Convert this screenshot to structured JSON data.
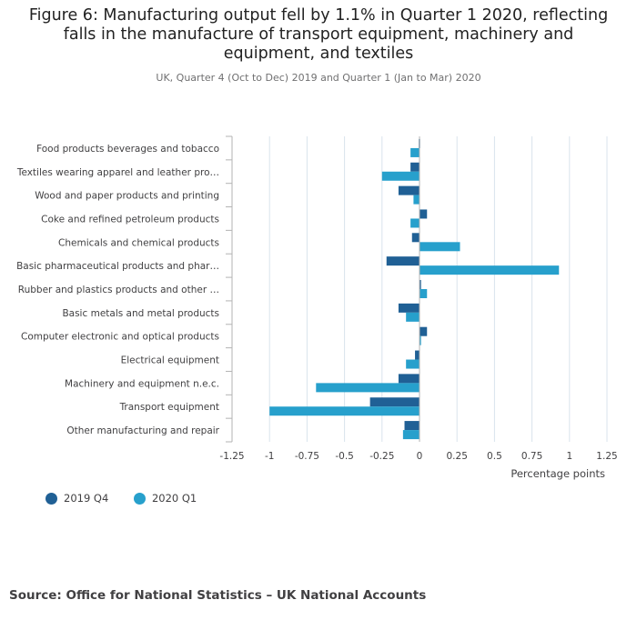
{
  "figure": {
    "title": "Figure 6: Manufacturing output fell by 1.1% in Quarter 1 2020, reflecting falls in the manufacture of transport equipment, machinery and equipment, and textiles",
    "subtitle": "UK, Quarter 4 (Oct to Dec) 2019 and Quarter 1 (Jan to Mar) 2020",
    "source": "Source: Office for National Statistics – UK National Accounts"
  },
  "colors": {
    "series_2019q4": "#206095",
    "series_2020q1": "#27a0cc",
    "grid": "#d9e3ec",
    "text": "#414042"
  },
  "chart_data": {
    "type": "bar",
    "orientation": "horizontal",
    "categories": [
      "Food products beverages and tobacco",
      "Textiles wearing apparel and leather pro…",
      "Wood and paper products and printing",
      "Coke and refined petroleum products",
      "Chemicals and chemical products",
      "Basic pharmaceutical products and phar…",
      "Rubber and plastics products and other …",
      "Basic metals and metal products",
      "Computer electronic and optical products",
      "Electrical equipment",
      "Machinery and equipment n.e.c.",
      "Transport equipment",
      "Other manufacturing and repair"
    ],
    "series": [
      {
        "name": "2019 Q4",
        "color": "#206095",
        "values": [
          -0.005,
          -0.06,
          -0.14,
          0.05,
          -0.05,
          -0.22,
          0.01,
          -0.14,
          0.05,
          -0.03,
          -0.14,
          -0.33,
          -0.1
        ]
      },
      {
        "name": "2020 Q1",
        "color": "#27a0cc",
        "values": [
          -0.06,
          -0.25,
          -0.04,
          -0.06,
          0.27,
          0.93,
          0.05,
          -0.09,
          0.01,
          -0.09,
          -0.69,
          -1.0,
          -0.11
        ]
      }
    ],
    "xlabel": "Percentage points",
    "xlim": [
      -1.25,
      1.25
    ],
    "xticks": [
      -1.25,
      -1,
      -0.75,
      -0.5,
      -0.25,
      0,
      0.25,
      0.5,
      0.75,
      1,
      1.25
    ],
    "xtick_labels": [
      "-1.25",
      "-1",
      "-0.75",
      "-0.5",
      "-0.25",
      "0",
      "0.25",
      "0.5",
      "0.75",
      "1",
      "1.25"
    ],
    "grid": true,
    "legend_position": "bottom-left"
  }
}
